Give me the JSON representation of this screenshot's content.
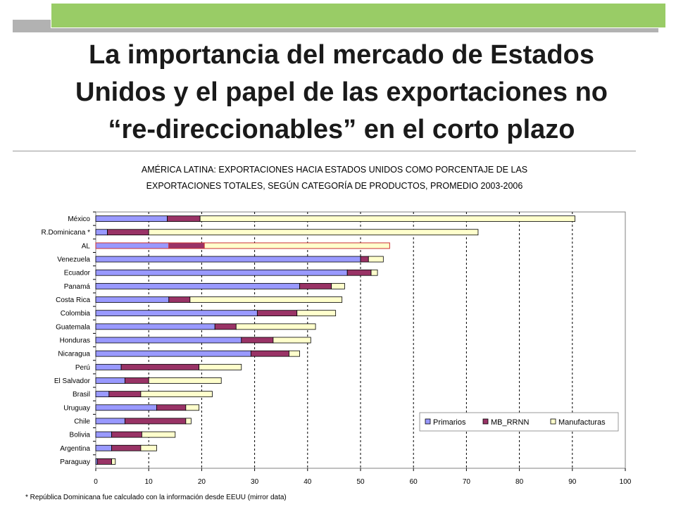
{
  "slide": {
    "title_line1": "La importancia del mercado de Estados",
    "title_line2": "Unidos y el papel de las exportaciones no",
    "title_line3": "“re-direccionables” en el corto plazo",
    "footnote": "* República Dominicana fue calculado con la información desde EEUU (mirror data)"
  },
  "chart_data": {
    "type": "bar",
    "orientation": "horizontal",
    "stacked": true,
    "title_line1": "AMÉRICA LATINA: EXPORTACIONES HACIA ESTADOS UNIDOS COMO PORCENTAJE DE LAS",
    "title_line2": "EXPORTACIONES TOTALES, SEGÚN CATEGORÍA DE PRODUCTOS, PROMEDIO 2003-2006",
    "xlim": [
      0,
      100
    ],
    "xticks": [
      "0",
      "10",
      "20",
      "30",
      "40",
      "50",
      "60",
      "70",
      "80",
      "90",
      "100"
    ],
    "grid": "vertical dashed",
    "legend_position": "lower-right",
    "highlight_category": "AL",
    "categories": [
      "México",
      "R.Dominicana *",
      "AL",
      "Venezuela",
      "Ecuador",
      "Panamá",
      "Costa Rica",
      "Colombia",
      "Guatemala",
      "Honduras",
      "Nicaragua",
      "Perú",
      "El Salvador",
      "Brasil",
      "Uruguay",
      "Chile",
      "Bolivia",
      "Argentina",
      "Paraguay"
    ],
    "series": [
      {
        "name": "Primarios",
        "color": "#9999ff",
        "values": [
          13.5,
          2.2,
          13.8,
          50.0,
          47.5,
          38.5,
          13.8,
          30.5,
          22.5,
          27.5,
          29.3,
          4.8,
          5.5,
          2.5,
          11.5,
          5.5,
          3.0,
          3.0,
          0.3
        ]
      },
      {
        "name": "MB_RRNN",
        "color": "#993366",
        "values": [
          6.2,
          7.8,
          6.7,
          1.5,
          4.5,
          6.0,
          4.0,
          7.5,
          4.0,
          6.0,
          7.2,
          14.7,
          4.5,
          6.0,
          5.5,
          11.5,
          5.7,
          5.5,
          2.7
        ]
      },
      {
        "name": "Manufacturas",
        "color": "#ffffcc",
        "values": [
          70.8,
          62.2,
          35.0,
          2.8,
          1.2,
          2.5,
          28.7,
          7.3,
          15.0,
          7.1,
          2.0,
          8.0,
          13.7,
          13.5,
          2.5,
          1.0,
          6.3,
          3.0,
          0.7
        ]
      }
    ]
  }
}
